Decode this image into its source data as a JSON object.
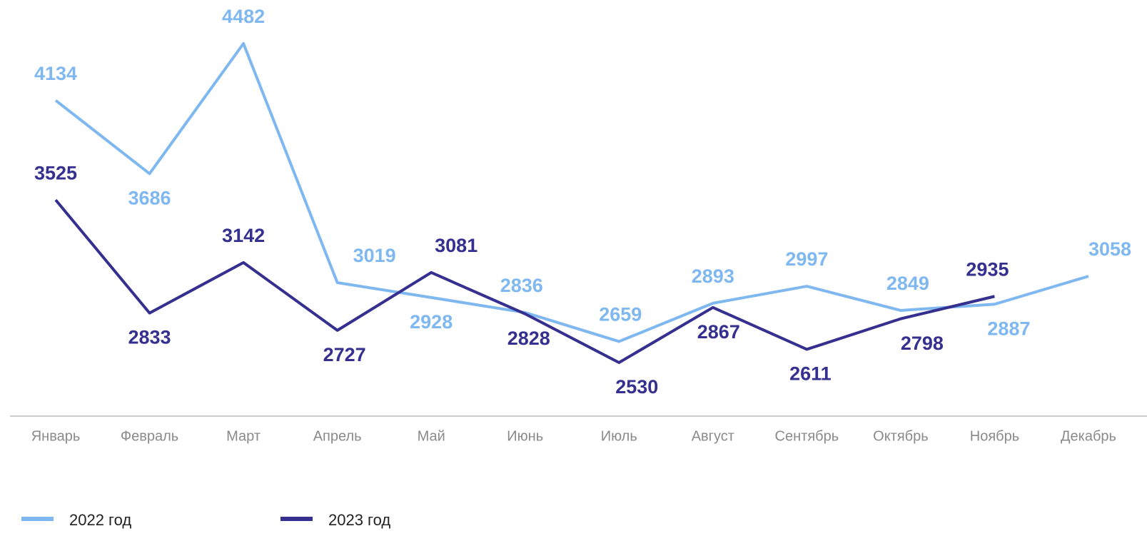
{
  "chart_data": {
    "type": "line",
    "categories": [
      "Январь",
      "Февраль",
      "Март",
      "Апрель",
      "Май",
      "Июнь",
      "Июль",
      "Август",
      "Сентябрь",
      "Октябрь",
      "Ноябрь",
      "Декабрь"
    ],
    "series": [
      {
        "name": "2022 год",
        "color": "#7fb8f0",
        "values": [
          4134,
          3686,
          4482,
          3019,
          2928,
          2836,
          2659,
          2893,
          2997,
          2849,
          2887,
          3058
        ]
      },
      {
        "name": "2023 год",
        "color": "#35308f",
        "values": [
          3525,
          2833,
          3142,
          2727,
          3081,
          2828,
          2530,
          2867,
          2611,
          2798,
          2935,
          null
        ]
      }
    ]
  }
}
